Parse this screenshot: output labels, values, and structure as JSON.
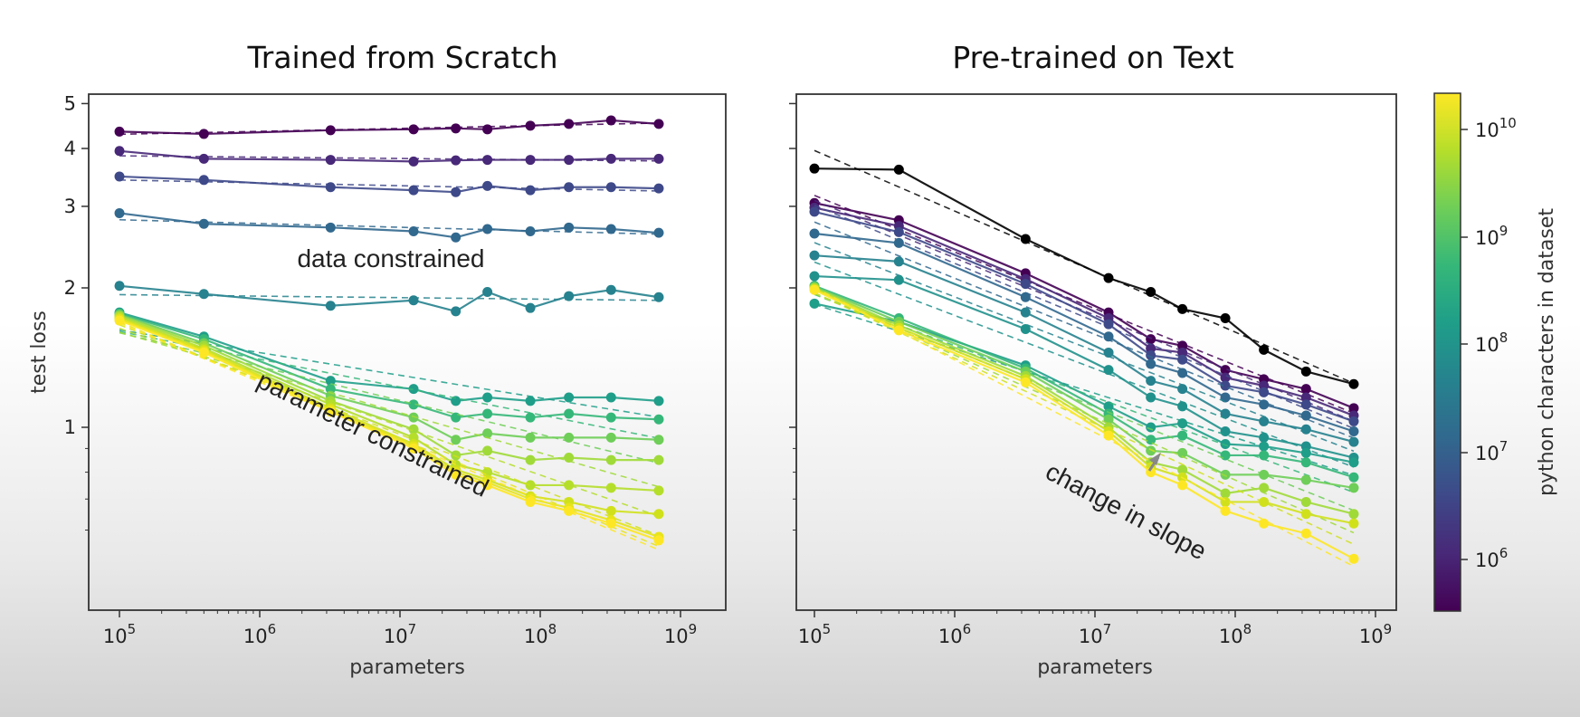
{
  "chart_data": [
    {
      "type": "line",
      "title": "Trained from Scratch",
      "xlabel": "parameters",
      "ylabel": "test loss",
      "xscale": "log",
      "yscale": "log",
      "xlim": [
        70000,
        1100000000
      ],
      "ylim": [
        0.5,
        5.3
      ],
      "x_ticks": [
        "10^5",
        "10^6",
        "10^7",
        "10^8",
        "10^9"
      ],
      "y_ticks": [
        "1",
        "2",
        "3",
        "4",
        "5"
      ],
      "x": [
        100000,
        400000,
        3200000,
        12500000,
        25000000,
        42000000,
        85000000,
        160000000,
        320000000,
        700000000
      ],
      "annotations": [
        "data constrained",
        "parameter constrained"
      ],
      "series": [
        {
          "color": "#440154",
          "values": [
            4.35,
            4.3,
            4.38,
            4.4,
            4.42,
            4.4,
            4.48,
            4.52,
            4.6,
            4.52
          ]
        },
        {
          "color": "#482878",
          "values": [
            3.95,
            3.8,
            3.78,
            3.75,
            3.77,
            3.78,
            3.78,
            3.78,
            3.8,
            3.8
          ]
        },
        {
          "color": "#3e4989",
          "values": [
            3.48,
            3.42,
            3.3,
            3.25,
            3.22,
            3.32,
            3.25,
            3.3,
            3.3,
            3.28
          ]
        },
        {
          "color": "#31688e",
          "values": [
            2.9,
            2.75,
            2.7,
            2.65,
            2.57,
            2.68,
            2.65,
            2.7,
            2.68,
            2.63
          ]
        },
        {
          "color": "#26828e",
          "values": [
            2.02,
            1.94,
            1.83,
            1.88,
            1.78,
            1.96,
            1.81,
            1.92,
            1.98,
            1.91
          ]
        },
        {
          "color": "#1f9e89",
          "values": [
            1.77,
            1.57,
            1.26,
            1.21,
            1.14,
            1.16,
            1.14,
            1.16,
            1.16,
            1.14
          ]
        },
        {
          "color": "#35b779",
          "values": [
            1.76,
            1.55,
            1.21,
            1.12,
            1.05,
            1.07,
            1.05,
            1.07,
            1.05,
            1.04
          ]
        },
        {
          "color": "#6ece58",
          "values": [
            1.75,
            1.52,
            1.17,
            1.05,
            0.94,
            0.97,
            0.95,
            0.95,
            0.95,
            0.94
          ]
        },
        {
          "color": "#a0da39",
          "values": [
            1.74,
            1.5,
            1.14,
            0.99,
            0.87,
            0.89,
            0.85,
            0.86,
            0.85,
            0.85
          ]
        },
        {
          "color": "#b5de2b",
          "values": [
            1.73,
            1.48,
            1.12,
            0.95,
            0.83,
            0.8,
            0.75,
            0.75,
            0.74,
            0.73
          ]
        },
        {
          "color": "#d0e11c",
          "values": [
            1.72,
            1.47,
            1.1,
            0.92,
            0.81,
            0.77,
            0.71,
            0.69,
            0.66,
            0.65
          ]
        },
        {
          "color": "#e7e419",
          "values": [
            1.71,
            1.46,
            1.09,
            0.91,
            0.8,
            0.76,
            0.7,
            0.67,
            0.63,
            0.58
          ]
        },
        {
          "color": "#fde725",
          "values": [
            1.7,
            1.45,
            1.08,
            0.9,
            0.79,
            0.75,
            0.69,
            0.66,
            0.62,
            0.57
          ]
        }
      ]
    },
    {
      "type": "line",
      "title": "Pre-trained on Text",
      "xlabel": "parameters",
      "xscale": "log",
      "yscale": "log",
      "xlim": [
        70000,
        1100000000
      ],
      "ylim": [
        0.5,
        5.3
      ],
      "x_ticks": [
        "10^5",
        "10^6",
        "10^7",
        "10^8",
        "10^9"
      ],
      "x": [
        100000,
        400000,
        3200000,
        12500000,
        25000000,
        42000000,
        85000000,
        160000000,
        320000000,
        700000000
      ],
      "annotations": [
        "change in slope"
      ],
      "series": [
        {
          "color": "#000000",
          "values": [
            3.62,
            3.6,
            2.55,
            2.1,
            1.96,
            1.8,
            1.72,
            1.47,
            1.32,
            1.24
          ]
        },
        {
          "color": "#440154",
          "values": [
            3.05,
            2.8,
            2.15,
            1.77,
            1.55,
            1.5,
            1.33,
            1.27,
            1.21,
            1.1
          ]
        },
        {
          "color": "#482878",
          "values": [
            2.98,
            2.72,
            2.09,
            1.72,
            1.48,
            1.45,
            1.28,
            1.23,
            1.16,
            1.06
          ]
        },
        {
          "color": "#3e4989",
          "values": [
            2.92,
            2.64,
            2.04,
            1.67,
            1.43,
            1.4,
            1.23,
            1.19,
            1.12,
            1.03
          ]
        },
        {
          "color": "#31688e",
          "values": [
            2.62,
            2.5,
            1.91,
            1.57,
            1.37,
            1.31,
            1.16,
            1.12,
            1.06,
            0.98
          ]
        },
        {
          "color": "#26828e",
          "values": [
            2.35,
            2.28,
            1.77,
            1.45,
            1.26,
            1.21,
            1.07,
            1.03,
            0.99,
            0.93
          ]
        },
        {
          "color": "#21918c",
          "values": [
            2.12,
            2.08,
            1.63,
            1.33,
            1.16,
            1.11,
            0.98,
            0.95,
            0.91,
            0.86
          ]
        },
        {
          "color": "#1f9e89",
          "values": [
            1.85,
            1.69,
            1.36,
            1.11,
            1.0,
            1.02,
            0.92,
            0.91,
            0.88,
            0.84
          ]
        },
        {
          "color": "#35b779",
          "values": [
            2.02,
            1.72,
            1.34,
            1.07,
            0.94,
            0.96,
            0.87,
            0.87,
            0.84,
            0.78
          ]
        },
        {
          "color": "#6ece58",
          "values": [
            2.01,
            1.69,
            1.32,
            1.04,
            0.89,
            0.88,
            0.79,
            0.79,
            0.77,
            0.74
          ]
        },
        {
          "color": "#a0da39",
          "values": [
            2.0,
            1.66,
            1.29,
            1.0,
            0.84,
            0.81,
            0.72,
            0.74,
            0.69,
            0.65
          ]
        },
        {
          "color": "#d0e11c",
          "values": [
            1.99,
            1.64,
            1.27,
            0.98,
            0.82,
            0.78,
            0.69,
            0.69,
            0.65,
            0.62
          ]
        },
        {
          "color": "#fde725",
          "values": [
            1.98,
            1.62,
            1.25,
            0.96,
            0.8,
            0.75,
            0.66,
            0.62,
            0.59,
            0.52
          ]
        }
      ]
    }
  ],
  "colorbar": {
    "label": "python characters in dataset",
    "ticks": [
      "10^6",
      "10^7",
      "10^8",
      "10^9",
      "10^10"
    ],
    "colors": [
      "#440154",
      "#482878",
      "#3e4989",
      "#31688e",
      "#26828e",
      "#1f9e89",
      "#35b779",
      "#6ece58",
      "#b5de2b",
      "#fde725"
    ]
  }
}
